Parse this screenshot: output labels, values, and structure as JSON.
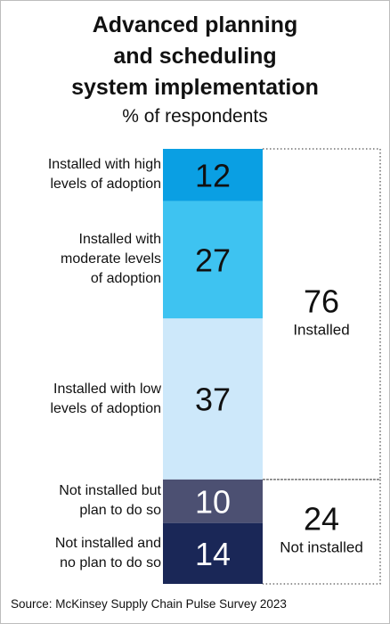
{
  "title_lines": [
    "Advanced planning",
    "and scheduling",
    "system implementation"
  ],
  "subtitle": "% of respondents",
  "source": "Source: McKinsey Supply Chain Pulse Survey 2023",
  "colors": {
    "high_adoption": "#0a9fe3",
    "moderate_adoption": "#3ec3f1",
    "low_adoption": "#cde8fa",
    "plan_to_install": "#4c5072",
    "no_plan": "#1a2757",
    "text": "#111111",
    "light_text": "#ffffff"
  },
  "chart_data": {
    "type": "bar",
    "stacked": true,
    "orientation": "vertical",
    "total": 100,
    "categories": [
      "Installed with high levels of adoption",
      "Installed with moderate levels of adoption",
      "Installed with low levels of adoption",
      "Not installed but plan to do so",
      "Not installed and no plan to do so"
    ],
    "category_lines": [
      [
        "Installed with high",
        "levels of adoption"
      ],
      [
        "Installed with",
        "moderate levels",
        "of adoption"
      ],
      [
        "Installed with low",
        "levels of adoption"
      ],
      [
        "Not installed but",
        "plan to do so"
      ],
      [
        "Not installed and",
        "no plan to do so"
      ]
    ],
    "values": [
      12,
      27,
      37,
      10,
      14
    ],
    "groups": [
      {
        "label": "Installed",
        "value": 76,
        "members": [
          0,
          1,
          2
        ]
      },
      {
        "label": "Not installed",
        "value": 24,
        "members": [
          3,
          4
        ]
      }
    ]
  }
}
